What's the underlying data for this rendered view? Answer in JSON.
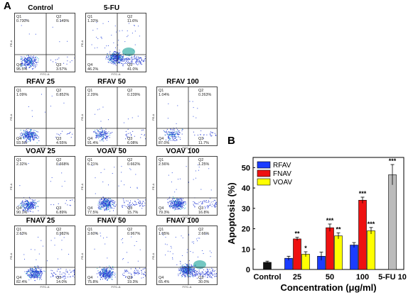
{
  "panel_a_label": "A",
  "panel_b_label": "B",
  "flow_plots": [
    {
      "title": "Control",
      "q1": "0.730%",
      "q2": "0.149%",
      "q3": "3.57%",
      "q4": "95.5%",
      "x_axis": "FITC-A",
      "y_axis": "PE-A",
      "density": "low"
    },
    {
      "title": "5-FU",
      "q1": "1.32%",
      "q2": "11.6%",
      "q3": "41.0%",
      "q4": "46.2%",
      "x_axis": "FITC-A",
      "y_axis": "PE-A",
      "density": "high"
    },
    {
      "title": "RFAV 25",
      "q1": "1.09%",
      "q2": "0.852%",
      "q3": "4.55%",
      "q4": "93.5%",
      "x_axis": "FITC-A",
      "y_axis": "PE-A",
      "density": "low"
    },
    {
      "title": "RFAV 50",
      "q1": "2.29%",
      "q2": "0.239%",
      "q3": "6.08%",
      "q4": "91.4%",
      "x_axis": "FITC-A",
      "y_axis": "PE-A",
      "density": "sparse"
    },
    {
      "title": "RFAV 100",
      "q1": "1.04%",
      "q2": "0.263%",
      "q3": "11.7%",
      "q4": "87.0%",
      "x_axis": "FITC-A",
      "y_axis": "PE-A",
      "density": "sparse"
    },
    {
      "title": "VOAV 25",
      "q1": "2.32%",
      "q2": "0.668%",
      "q3": "6.89%",
      "q4": "90.1%",
      "x_axis": "FITC-A",
      "y_axis": "PE-A",
      "density": "low"
    },
    {
      "title": "VOAV 50",
      "q1": "6.21%",
      "q2": "0.662%",
      "q3": "15.7%",
      "q4": "77.5%",
      "x_axis": "FITC-A",
      "y_axis": "PE-A",
      "density": "mid"
    },
    {
      "title": "VOAV 100",
      "q1": "2.56%",
      "q2": "1.25%",
      "q3": "16.8%",
      "q4": "79.3%",
      "x_axis": "FITC-A",
      "y_axis": "PE-A",
      "density": "mid"
    },
    {
      "title": "FNAV 25",
      "q1": "2.63%",
      "q2": "0.982%",
      "q3": "14.0%",
      "q4": "82.4%",
      "x_axis": "FITC-A",
      "y_axis": "PE-A",
      "density": "mid"
    },
    {
      "title": "FNAV 50",
      "q1": "3.60%",
      "q2": "0.967%",
      "q3": "19.3%",
      "q4": "75.8%",
      "x_axis": "FITC-A",
      "y_axis": "PE-A",
      "density": "mid"
    },
    {
      "title": "FNAV 100",
      "q1": "1.95%",
      "q2": "2.66%",
      "q3": "30.0%",
      "q4": "65.4%",
      "x_axis": "FITC-A",
      "y_axis": "PE-A",
      "density": "high"
    }
  ],
  "chart_data": {
    "type": "bar",
    "title": "",
    "xlabel": "Concentration (μg/ml)",
    "ylabel": "Apoptosis (%)",
    "ylim": [
      0,
      55
    ],
    "yticks": [
      0,
      10,
      20,
      30,
      40,
      50
    ],
    "legend_position": "top-left",
    "grid": false,
    "categories": [
      "Control",
      "25",
      "50",
      "100",
      "5-FU 10"
    ],
    "series": [
      {
        "name": "RFAV",
        "color": "#1a3cff",
        "values": [
          null,
          5.5,
          6.5,
          12,
          null
        ],
        "errors": [
          null,
          1.0,
          2.0,
          1.2,
          null
        ],
        "stars": [
          null,
          "",
          "",
          "",
          null
        ]
      },
      {
        "name": "FNAV",
        "color": "#ee1111",
        "values": [
          null,
          15.0,
          20.5,
          34.0,
          null
        ],
        "errors": [
          null,
          0.8,
          1.8,
          1.5,
          null
        ],
        "stars": [
          null,
          "**",
          "***",
          "***",
          null
        ]
      },
      {
        "name": "VOAV",
        "color": "#ffff00",
        "values": [
          null,
          7.5,
          16.5,
          19.0,
          null
        ],
        "errors": [
          null,
          1.2,
          1.5,
          1.6,
          null
        ],
        "stars": [
          null,
          "*",
          "**",
          "***",
          null
        ]
      }
    ],
    "control": {
      "value": 3.5,
      "error": 0.6,
      "color": "#111111"
    },
    "fu": {
      "value": 46.5,
      "error": 5.0,
      "color": "#bbbbbb",
      "stars": "***"
    }
  }
}
